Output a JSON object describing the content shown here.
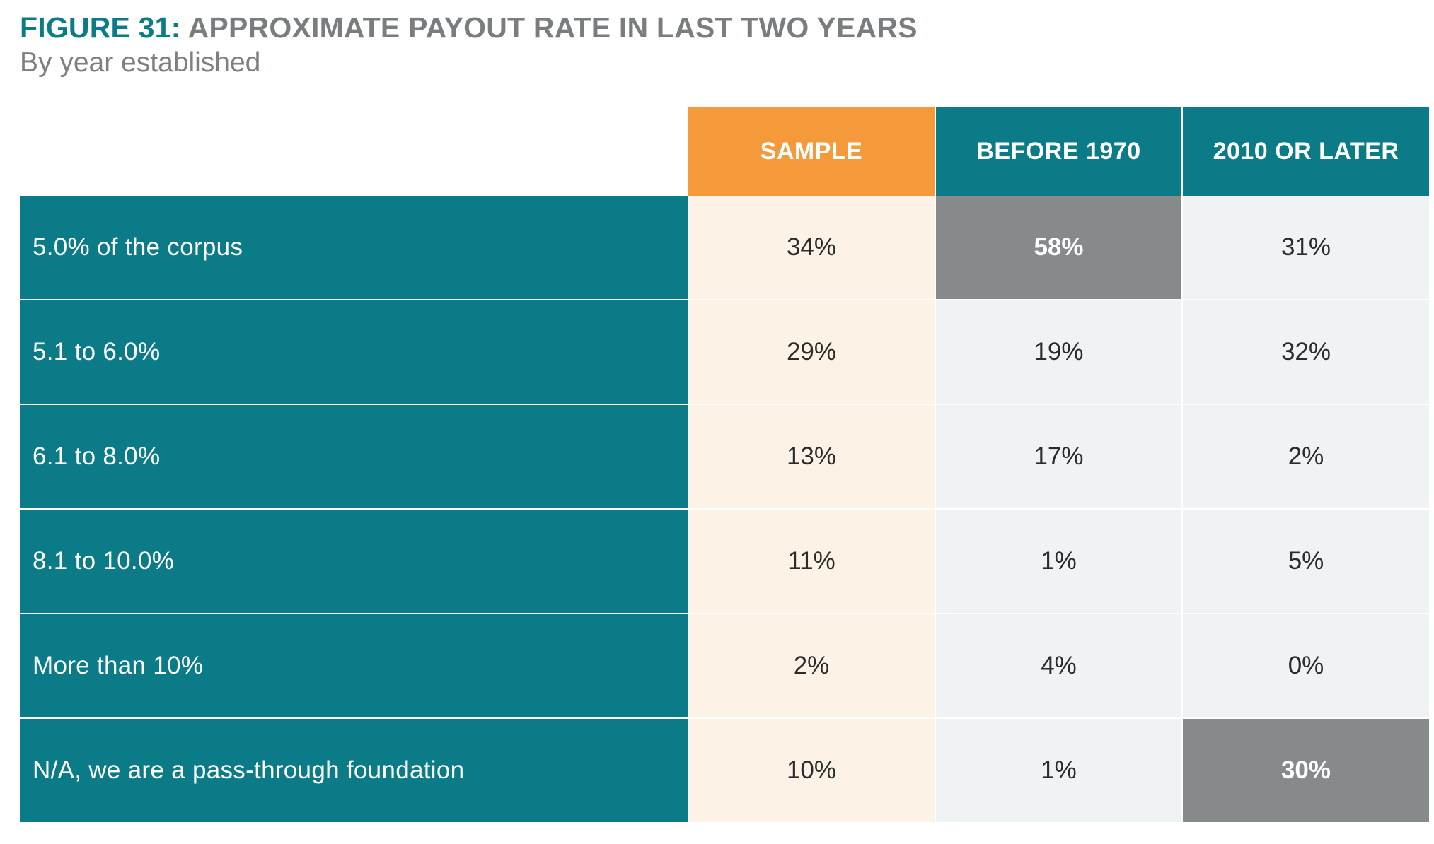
{
  "figure": {
    "number_label": "FIGURE 31:",
    "title": "APPROXIMATE PAYOUT RATE IN LAST TWO YEARS",
    "subtitle": "By year established"
  },
  "colors": {
    "teal": "#0b7b87",
    "orange": "#f49a3a",
    "highlight_gray": "#868a8a",
    "sample_bg": "#fcf2e6",
    "other_bg": "#f0f3f4"
  },
  "chart_data": {
    "type": "table",
    "title": "APPROXIMATE PAYOUT RATE IN LAST TWO YEARS",
    "subtitle": "By year established",
    "columns": [
      "SAMPLE",
      "BEFORE 1970",
      "2010 OR LATER"
    ],
    "rows": [
      {
        "label": "5.0% of the corpus",
        "values": [
          "34%",
          "58%",
          "31%"
        ],
        "highlight": [
          false,
          true,
          false
        ]
      },
      {
        "label": "5.1 to 6.0%",
        "values": [
          "29%",
          "19%",
          "32%"
        ],
        "highlight": [
          false,
          false,
          false
        ]
      },
      {
        "label": "6.1 to 8.0%",
        "values": [
          "13%",
          "17%",
          "2%"
        ],
        "highlight": [
          false,
          false,
          false
        ]
      },
      {
        "label": "8.1 to 10.0%",
        "values": [
          "11%",
          "1%",
          "5%"
        ],
        "highlight": [
          false,
          false,
          false
        ]
      },
      {
        "label": "More than 10%",
        "values": [
          "2%",
          "4%",
          "0%"
        ],
        "highlight": [
          false,
          false,
          false
        ]
      },
      {
        "label": "N/A, we are a pass-through foundation",
        "values": [
          "10%",
          "1%",
          "30%"
        ],
        "highlight": [
          false,
          false,
          true
        ]
      }
    ]
  }
}
